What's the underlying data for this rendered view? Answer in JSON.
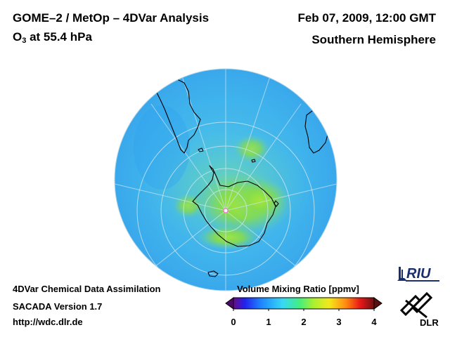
{
  "header": {
    "title": "GOME–2 / MetOp – 4DVar Analysis",
    "quantity_prefix": "O",
    "quantity_subscript": "3",
    "quantity_suffix": " at 55.4 hPa",
    "date": "Feb 07, 2009, 12:00 GMT",
    "region": "Southern Hemisphere"
  },
  "footer": {
    "line1": "4DVar Chemical Data Assimilation",
    "line2": "SACADA Version 1.7",
    "line3": "http://wdc.dlr.de"
  },
  "colorbar": {
    "label": "Volume Mixing Ratio [ppmv]",
    "ticks": [
      "0",
      "1",
      "2",
      "3",
      "4"
    ],
    "range": [
      0,
      4
    ]
  },
  "logos": {
    "riu_text": "RIU",
    "dlr_text": "DLR"
  },
  "colors": {
    "ocean_background": "#41b5ee",
    "high_ozone": "#8fe048",
    "mid_ozone": "#5fd19a",
    "coastline": "#000000",
    "grid": "#cfe6ef"
  }
}
